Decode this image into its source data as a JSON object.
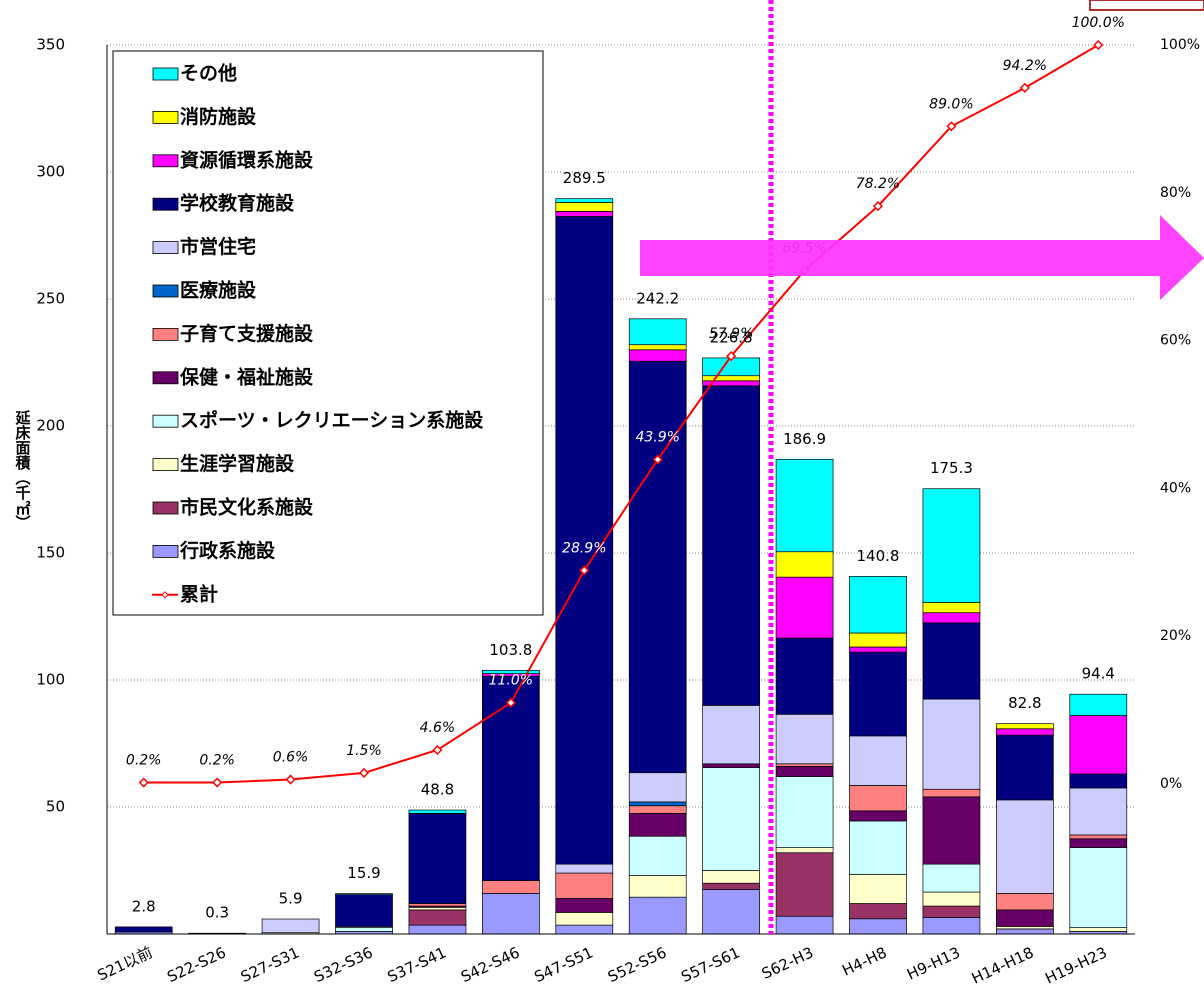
{
  "chart_data": {
    "type": "bar",
    "stacked": true,
    "y_label": "延床面積（千㎡）",
    "categories": [
      "S21以前",
      "S22-S26",
      "S27-S31",
      "S32-S36",
      "S37-S41",
      "S42-S46",
      "S47-S51",
      "S52-S56",
      "S57-S61",
      "S62-H3",
      "H4-H8",
      "H9-H13",
      "H14-H18",
      "H19-H23"
    ],
    "totals": [
      2.8,
      0.3,
      5.9,
      15.9,
      48.8,
      103.8,
      289.5,
      242.2,
      226.8,
      186.9,
      140.8,
      175.3,
      82.8,
      94.4
    ],
    "ylim": [
      0,
      350
    ],
    "yticks": [
      50,
      100,
      150,
      200,
      250,
      300,
      350
    ],
    "y2lim": [
      -20.3,
      100
    ],
    "y2ticks": [
      {
        "value": 0,
        "label": "0%"
      },
      {
        "value": 20,
        "label": "20%"
      },
      {
        "value": 40,
        "label": "40%"
      },
      {
        "value": 60,
        "label": "60%"
      },
      {
        "value": 80,
        "label": "80%"
      },
      {
        "value": 100,
        "label": "100%"
      }
    ],
    "grid": true,
    "legend": "upper left",
    "series": [
      {
        "name": "行政系施設",
        "color": "#9999ff",
        "values": [
          0.8,
          0,
          0,
          1.0,
          3.5,
          16,
          3.5,
          14.5,
          17.5,
          7,
          6,
          6.5,
          2,
          1
        ]
      },
      {
        "name": "市民文化系施設",
        "color": "#993366",
        "values": [
          0,
          0,
          0,
          0,
          6.0,
          0,
          0,
          0,
          2.5,
          25,
          6,
          4.5,
          0,
          0
        ]
      },
      {
        "name": "生涯学習施設",
        "color": "#ffffcc",
        "values": [
          0,
          0,
          0.5,
          0,
          1.0,
          0,
          5,
          8.5,
          5,
          2,
          11.5,
          5.5,
          1,
          1.5
        ]
      },
      {
        "name": "スポーツ・レクリエーション系施設",
        "color": "#ccffff",
        "values": [
          0,
          0,
          0,
          1.5,
          0,
          0,
          0,
          15.5,
          40.5,
          28,
          21,
          11,
          0,
          31.5
        ]
      },
      {
        "name": "保健・福祉施設",
        "color": "#660066",
        "values": [
          0,
          0,
          0,
          0,
          0.5,
          0,
          5.5,
          9,
          1.5,
          4,
          4,
          26.5,
          6.5,
          3.5
        ]
      },
      {
        "name": "子育て支援施設",
        "color": "#ff8080",
        "values": [
          0,
          0,
          0,
          0,
          1.0,
          5,
          10,
          3,
          0,
          1,
          10,
          3,
          6.5,
          1.5
        ]
      },
      {
        "name": "医療施設",
        "color": "#0066cc",
        "values": [
          0,
          0,
          0,
          0,
          0,
          0,
          0,
          1.5,
          0,
          0,
          0,
          0,
          0,
          0
        ]
      },
      {
        "name": "市営住宅",
        "color": "#ccccff",
        "values": [
          0,
          0,
          5.4,
          0.5,
          0,
          0,
          3.5,
          11.5,
          23,
          19.5,
          19.5,
          35.5,
          36.8,
          18.5
        ]
      },
      {
        "name": "学校教育施設",
        "color": "#000080",
        "values": [
          2.0,
          0.3,
          0,
          12.5,
          35.5,
          80.5,
          255,
          162,
          125.8,
          30,
          33,
          30,
          25.5,
          5.5
        ]
      },
      {
        "name": "資源循環系施設",
        "color": "#ff00ff",
        "values": [
          0,
          0,
          0,
          0,
          0,
          1,
          2,
          4.5,
          2,
          24,
          2,
          4,
          2.5,
          23
        ]
      },
      {
        "name": "消防施設",
        "color": "#ffff00",
        "values": [
          0,
          0,
          0,
          0,
          0,
          0,
          3.5,
          2,
          2,
          10,
          5.5,
          4,
          2,
          0
        ]
      },
      {
        "name": "その他",
        "color": "#00ffff",
        "values": [
          0,
          0,
          0,
          0.4,
          1.3,
          1.3,
          1.5,
          10.2,
          7,
          36.4,
          22.3,
          44.8,
          0,
          8.4
        ]
      },
      {
        "name": "累計",
        "color": "#ff0000",
        "type": "line",
        "axis": "y2",
        "values": [
          0.2,
          0.2,
          0.6,
          1.5,
          4.6,
          11.0,
          28.9,
          43.9,
          57.9,
          69.5,
          78.2,
          89.0,
          94.2,
          100.0
        ],
        "value_labels": [
          "0.2%",
          "0.2%",
          "0.6%",
          "1.5%",
          "4.6%",
          "11.0%",
          "28.9%",
          "43.9%",
          "57.9%",
          "69.5%",
          "78.2%",
          "89.0%",
          "94.2%",
          "100.0%"
        ]
      }
    ]
  }
}
